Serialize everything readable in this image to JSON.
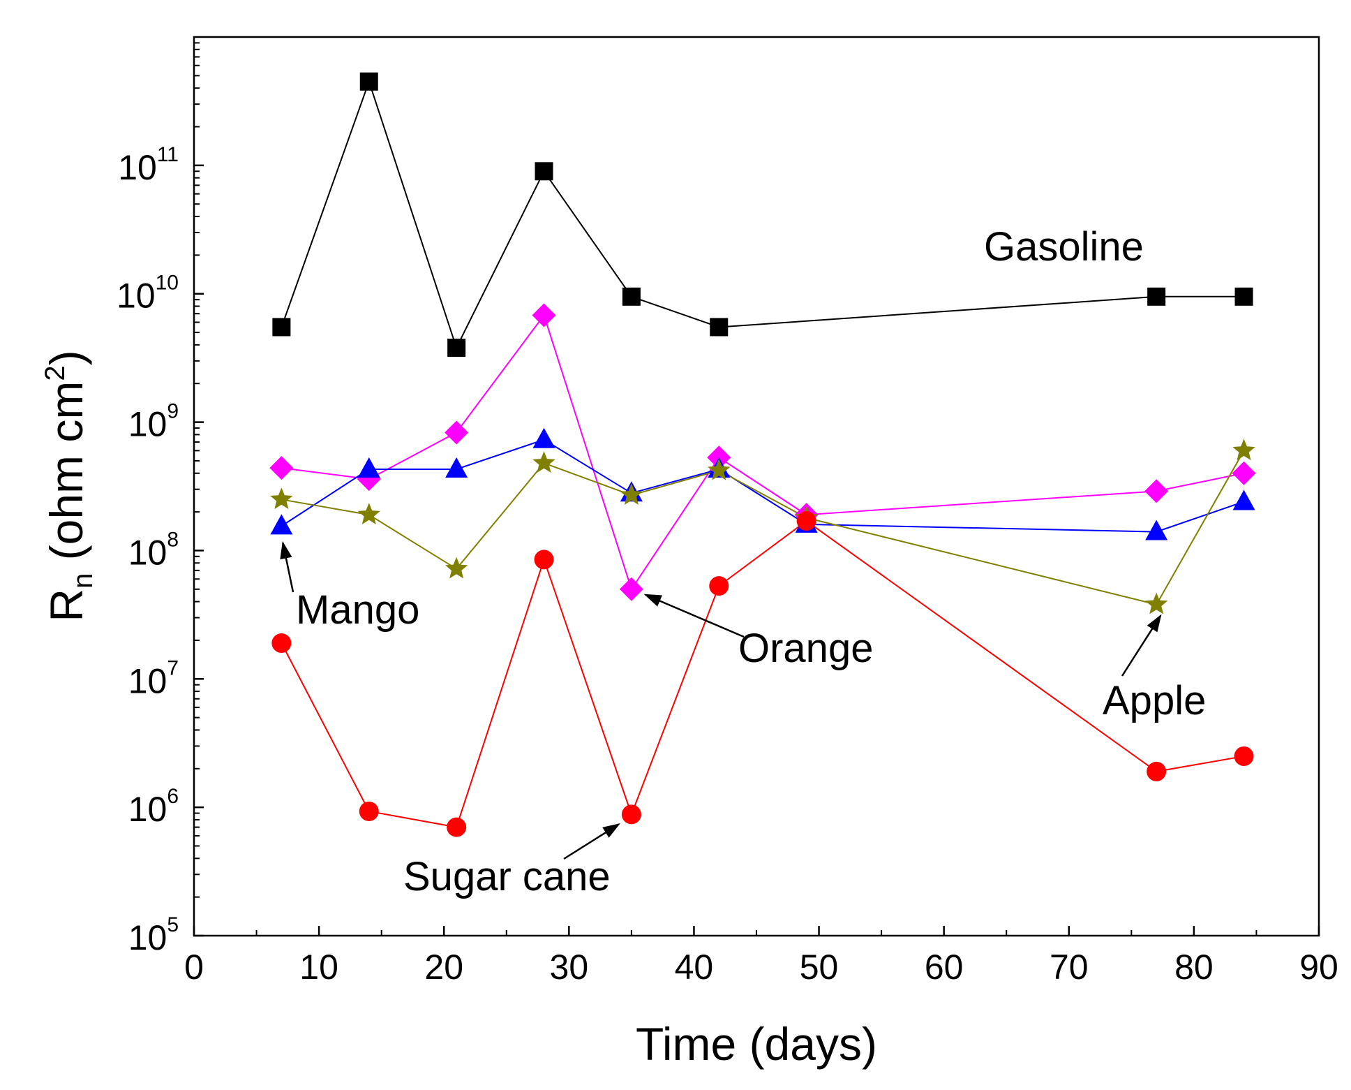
{
  "chart_data": {
    "type": "line",
    "title": "",
    "xlabel": "Time (days)",
    "ylabel": {
      "main": "R",
      "sub": "n",
      "unit_open": " (ohm cm",
      "unit_sup": "2",
      "unit_close": ")"
    },
    "xlim": [
      0,
      90
    ],
    "ylim": [
      100000,
      1000000000000
    ],
    "yscale": "log",
    "x_ticks": [
      0,
      10,
      20,
      30,
      40,
      50,
      60,
      70,
      80,
      90
    ],
    "y_ticks": [
      {
        "base": "10",
        "exp": "5",
        "value": 100000
      },
      {
        "base": "10",
        "exp": "6",
        "value": 1000000
      },
      {
        "base": "10",
        "exp": "7",
        "value": 10000000
      },
      {
        "base": "10",
        "exp": "8",
        "value": 100000000
      },
      {
        "base": "10",
        "exp": "9",
        "value": 1000000000
      },
      {
        "base": "10",
        "exp": "10",
        "value": 10000000000
      },
      {
        "base": "10",
        "exp": "11",
        "value": 100000000000
      }
    ],
    "series": [
      {
        "name": "Gasoline",
        "marker": "square",
        "color": "#000000",
        "x": [
          7,
          14,
          21,
          28,
          35,
          42,
          77,
          84
        ],
        "y": [
          5500000000.0,
          450000000000.0,
          3800000000.0,
          90000000000.0,
          9500000000.0,
          5500000000.0,
          9500000000.0,
          9500000000.0
        ]
      },
      {
        "name": "Orange",
        "marker": "diamond",
        "color": "#ff00ff",
        "x": [
          7,
          14,
          21,
          28,
          35,
          42,
          49,
          77,
          84
        ],
        "y": [
          440000000.0,
          360000000.0,
          830000000.0,
          6800000000.0,
          50000000.0,
          530000000.0,
          190000000.0,
          290000000.0,
          400000000.0
        ]
      },
      {
        "name": "Mango",
        "marker": "triangle",
        "color": "#0000ff",
        "x": [
          7,
          14,
          21,
          28,
          35,
          42,
          49,
          77,
          84
        ],
        "y": [
          155000000.0,
          430000000.0,
          430000000.0,
          730000000.0,
          280000000.0,
          430000000.0,
          160000000.0,
          140000000.0,
          240000000.0
        ]
      },
      {
        "name": "Apple",
        "marker": "star",
        "color": "#808000",
        "x": [
          7,
          14,
          21,
          28,
          35,
          42,
          49,
          77,
          84
        ],
        "y": [
          250000000.0,
          190000000.0,
          72000000.0,
          480000000.0,
          270000000.0,
          420000000.0,
          180000000.0,
          38000000.0,
          600000000.0
        ]
      },
      {
        "name": "Sugar cane",
        "marker": "circle",
        "color": "#ff0000",
        "x": [
          7,
          14,
          21,
          28,
          35,
          42,
          49,
          77,
          84
        ],
        "y": [
          19000000.0,
          930000.0,
          700000.0,
          85000000.0,
          880000.0,
          53000000.0,
          170000000.0,
          1900000.0,
          2500000.0
        ]
      }
    ],
    "annotations": [
      {
        "text": "Gasoline",
        "series": "Gasoline",
        "arrow": false
      },
      {
        "text": "Mango",
        "series": "Mango",
        "arrow": true
      },
      {
        "text": "Orange",
        "series": "Orange",
        "arrow": true
      },
      {
        "text": "Apple",
        "series": "Apple",
        "arrow": true
      },
      {
        "text": "Sugar cane",
        "series": "Sugar cane",
        "arrow": true
      }
    ]
  }
}
